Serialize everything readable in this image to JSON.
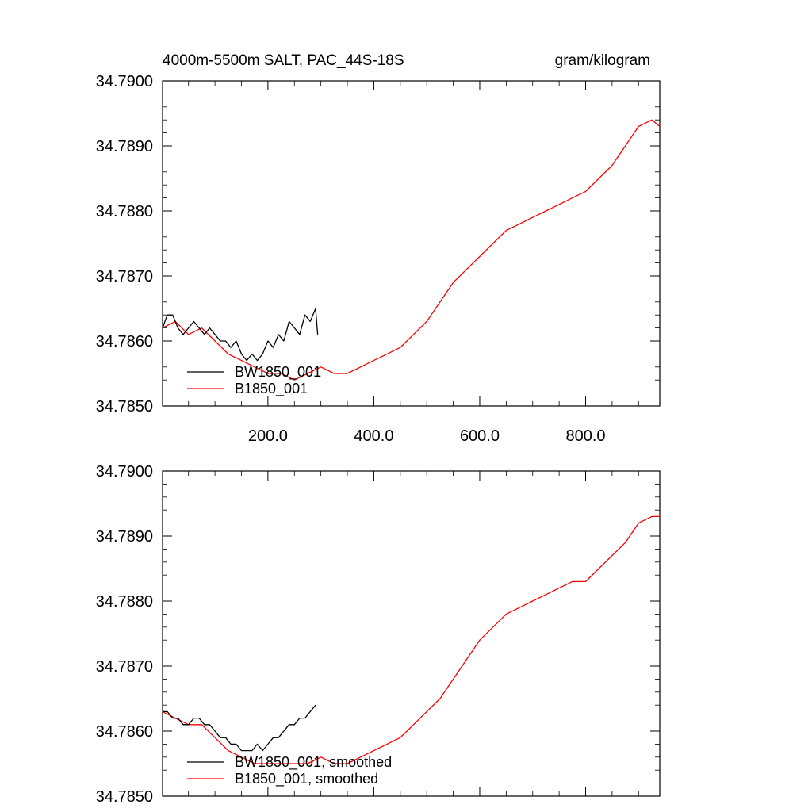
{
  "header": {
    "title": "4000m-5500m SALT, PAC_44S-18S",
    "units": "gram/kilogram"
  },
  "chart_data": [
    {
      "type": "line",
      "title": "4000m-5500m SALT, PAC_44S-18S",
      "units": "gram/kilogram",
      "xlim": [
        1,
        940
      ],
      "ylim": [
        34.785,
        34.79
      ],
      "x_tick_values": [
        200,
        400,
        600,
        800
      ],
      "x_tick_labels": [
        "200.0",
        "400.0",
        "600.0",
        "800.0"
      ],
      "y_tick_values": [
        34.785,
        34.786,
        34.787,
        34.788,
        34.789,
        34.79
      ],
      "y_tick_labels": [
        "34.7850",
        "34.7860",
        "34.7870",
        "34.7880",
        "34.7890",
        "34.7900"
      ],
      "legend_position": "bottom-left",
      "series": [
        {
          "name": "BW1850_001",
          "color": "#000000",
          "x": [
            1,
            10,
            20,
            30,
            40,
            50,
            60,
            70,
            80,
            90,
            100,
            110,
            120,
            130,
            140,
            150,
            160,
            170,
            180,
            190,
            200,
            210,
            220,
            230,
            240,
            250,
            260,
            270,
            280,
            290,
            294
          ],
          "y": [
            34.7862,
            34.7864,
            34.7864,
            34.7862,
            34.7861,
            34.7862,
            34.7863,
            34.7862,
            34.7861,
            34.7862,
            34.7861,
            34.786,
            34.786,
            34.7859,
            34.786,
            34.7858,
            34.7857,
            34.7858,
            34.7857,
            34.7858,
            34.786,
            34.7859,
            34.7861,
            34.786,
            34.7863,
            34.7862,
            34.7861,
            34.7864,
            34.7863,
            34.7865,
            34.7861
          ]
        },
        {
          "name": "B1850_001",
          "color": "#ff0000",
          "x": [
            1,
            25,
            50,
            75,
            100,
            125,
            150,
            175,
            200,
            225,
            250,
            275,
            300,
            325,
            350,
            375,
            400,
            425,
            450,
            475,
            500,
            525,
            550,
            575,
            600,
            625,
            650,
            675,
            700,
            725,
            750,
            775,
            800,
            825,
            850,
            875,
            900,
            925,
            940
          ],
          "y": [
            34.7862,
            34.7863,
            34.7861,
            34.7862,
            34.786,
            34.7858,
            34.7857,
            34.7856,
            34.7855,
            34.7855,
            34.7854,
            34.7855,
            34.7856,
            34.7855,
            34.7855,
            34.7856,
            34.7857,
            34.7858,
            34.7859,
            34.7861,
            34.7863,
            34.7866,
            34.7869,
            34.7871,
            34.7873,
            34.7875,
            34.7877,
            34.7878,
            34.7879,
            34.788,
            34.7881,
            34.7882,
            34.7883,
            34.7885,
            34.7887,
            34.789,
            34.7893,
            34.7894,
            34.7893
          ]
        }
      ]
    },
    {
      "type": "line",
      "xlim": [
        1,
        940
      ],
      "ylim": [
        34.785,
        34.79
      ],
      "x_tick_values": [
        200,
        400,
        600,
        800
      ],
      "y_tick_values": [
        34.785,
        34.786,
        34.787,
        34.788,
        34.789,
        34.79
      ],
      "y_tick_labels": [
        "34.7850",
        "34.7860",
        "34.7870",
        "34.7880",
        "34.7890",
        "34.7900"
      ],
      "legend_position": "bottom-left",
      "series": [
        {
          "name": "BW1850_001, smoothed",
          "color": "#000000",
          "x": [
            1,
            10,
            20,
            30,
            40,
            50,
            60,
            70,
            80,
            90,
            100,
            110,
            120,
            130,
            140,
            150,
            160,
            170,
            180,
            190,
            200,
            210,
            220,
            230,
            240,
            250,
            260,
            270,
            280,
            290
          ],
          "y": [
            34.7863,
            34.7863,
            34.7862,
            34.7862,
            34.7861,
            34.7861,
            34.7862,
            34.7862,
            34.7861,
            34.7861,
            34.786,
            34.7859,
            34.7859,
            34.7858,
            34.7858,
            34.7857,
            34.7857,
            34.7857,
            34.7858,
            34.7857,
            34.7858,
            34.7859,
            34.7859,
            34.786,
            34.7861,
            34.7861,
            34.7862,
            34.7862,
            34.7863,
            34.7864
          ]
        },
        {
          "name": "B1850_001, smoothed",
          "color": "#ff0000",
          "x": [
            1,
            25,
            50,
            75,
            100,
            125,
            150,
            175,
            200,
            225,
            250,
            275,
            300,
            325,
            350,
            375,
            400,
            425,
            450,
            475,
            500,
            525,
            550,
            575,
            600,
            625,
            650,
            675,
            700,
            725,
            750,
            775,
            800,
            825,
            850,
            875,
            900,
            925,
            940
          ],
          "y": [
            34.7863,
            34.7862,
            34.7861,
            34.7861,
            34.7859,
            34.7857,
            34.7856,
            34.7855,
            34.7855,
            34.7855,
            34.7855,
            34.7855,
            34.7856,
            34.7855,
            34.7855,
            34.7856,
            34.7857,
            34.7858,
            34.7859,
            34.7861,
            34.7863,
            34.7865,
            34.7868,
            34.7871,
            34.7874,
            34.7876,
            34.7878,
            34.7879,
            34.788,
            34.7881,
            34.7882,
            34.7883,
            34.7883,
            34.7885,
            34.7887,
            34.7889,
            34.7892,
            34.7893,
            34.7893
          ]
        }
      ]
    }
  ]
}
